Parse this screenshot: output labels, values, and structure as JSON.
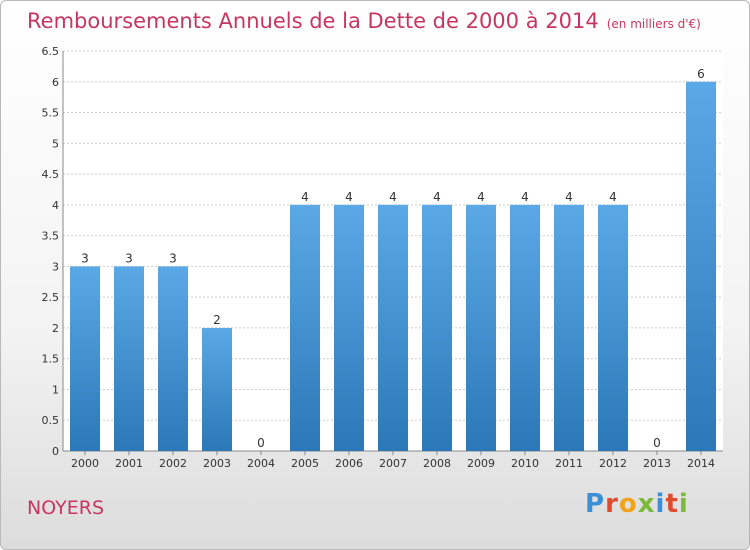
{
  "header": {
    "title": "Remboursements Annuels de la Dette de 2000 à 2014",
    "unit": "(en milliers d'€)"
  },
  "footer": {
    "town": "NOYERS",
    "logo": "Proxiti"
  },
  "colors": {
    "title": "#c8365f",
    "bar_top": "#5aa9e6",
    "bar_bottom": "#2b78b8",
    "grid": "#cccccc"
  },
  "chart_data": {
    "type": "bar",
    "title": "Remboursements Annuels de la Dette de 2000 à 2014",
    "subtitle": "(en milliers d'€)",
    "categories": [
      "2000",
      "2001",
      "2002",
      "2003",
      "2004",
      "2005",
      "2006",
      "2007",
      "2008",
      "2009",
      "2010",
      "2011",
      "2012",
      "2013",
      "2014"
    ],
    "values": [
      3,
      3,
      3,
      2,
      0,
      4,
      4,
      4,
      4,
      4,
      4,
      4,
      4,
      0,
      6
    ],
    "data_labels": [
      "3",
      "3",
      "3",
      "2",
      "0",
      "4",
      "4",
      "4",
      "4",
      "4",
      "4",
      "4",
      "4",
      "0",
      "6"
    ],
    "yticks": [
      "0",
      "0.5",
      "1",
      "1.5",
      "2",
      "2.5",
      "3",
      "3.5",
      "4",
      "4.5",
      "5",
      "5.5",
      "6",
      "6.5"
    ],
    "ylim": [
      0,
      6.5
    ],
    "grid": true
  }
}
